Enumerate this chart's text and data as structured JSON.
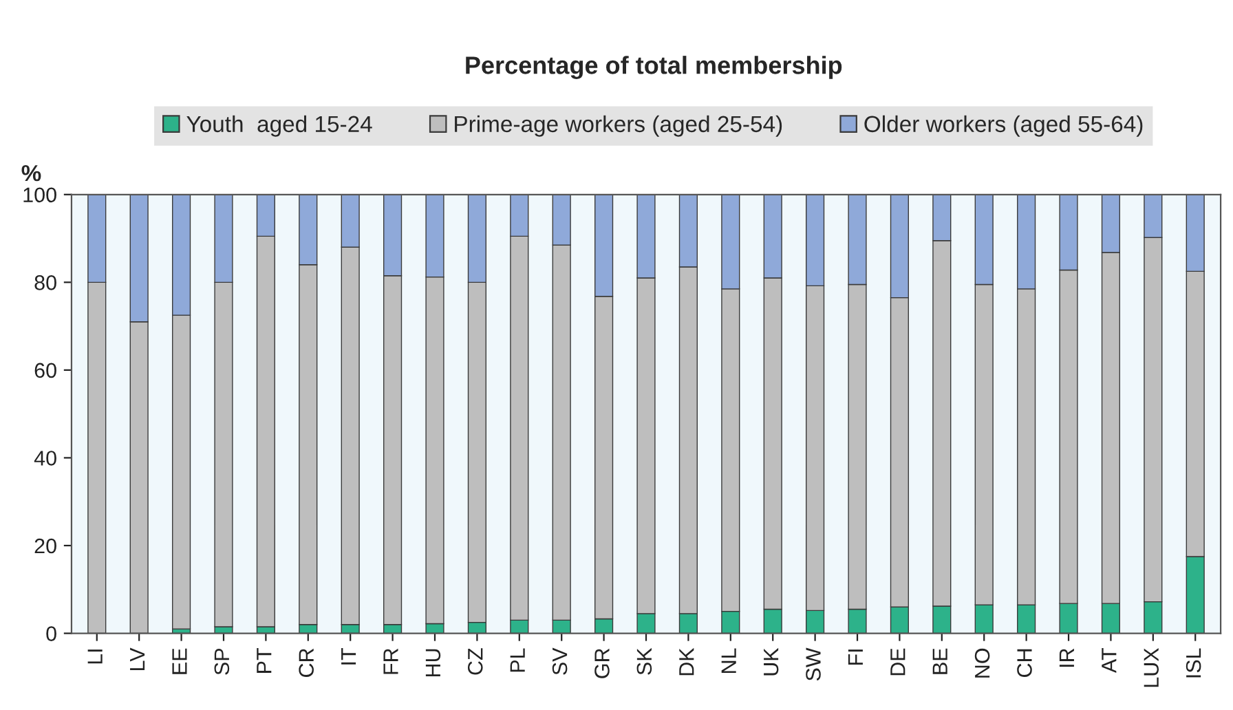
{
  "chart_data": {
    "type": "bar",
    "stacked": true,
    "title": "Percentage of total membership",
    "ylabel": "%",
    "categories": [
      "LI",
      "LV",
      "EE",
      "SP",
      "PT",
      "CR",
      "IT",
      "FR",
      "HU",
      "CZ",
      "PL",
      "SV",
      "GR",
      "SK",
      "DK",
      "NL",
      "UK",
      "SW",
      "FI",
      "DE",
      "BE",
      "NO",
      "CH",
      "IR",
      "AT",
      "LUX",
      "ISL"
    ],
    "series": [
      {
        "name": "Youth  aged 15-24",
        "color": "#2db28a",
        "values": [
          0,
          0,
          1,
          1.5,
          1.5,
          2,
          2,
          2,
          2.2,
          2.5,
          3,
          3,
          3.3,
          4.5,
          4.5,
          5,
          5.5,
          5.2,
          5.5,
          6,
          6.2,
          6.5,
          6.5,
          6.8,
          6.8,
          7.2,
          17.5
        ]
      },
      {
        "name": "Prime-age workers (aged 25-54)",
        "color": "#bebebe",
        "values": [
          80,
          71,
          71.5,
          78.5,
          89,
          82,
          86,
          79.5,
          79,
          77.5,
          87.5,
          85.5,
          73.5,
          76.5,
          79,
          73.5,
          75.5,
          74,
          74,
          70.5,
          83.3,
          73,
          72,
          76,
          80,
          83,
          65
        ]
      },
      {
        "name": "Older workers (aged 55-64)",
        "color": "#8fa9d9",
        "values": [
          20,
          29,
          27.5,
          20,
          9.5,
          16,
          12,
          18.5,
          18.8,
          20,
          9.5,
          11.5,
          23.2,
          19,
          16.5,
          21.5,
          19,
          20.8,
          20.5,
          23.5,
          10.5,
          20.5,
          21.5,
          17.2,
          13.2,
          9.8,
          17.5
        ]
      }
    ],
    "ylim": [
      0,
      100
    ],
    "yticks": [
      0,
      20,
      40,
      60,
      80,
      100
    ],
    "grid": false,
    "legend": "top"
  }
}
